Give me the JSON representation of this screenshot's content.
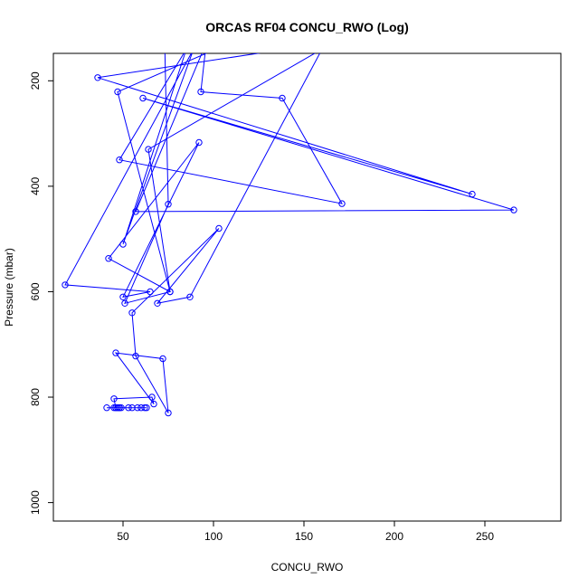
{
  "chart_data": {
    "type": "line",
    "title": "ORCAS RF04 CONCU_RWO (Log)",
    "xlabel": "CONCU_RWO",
    "ylabel": "Pressure (mbar)",
    "xlim": [
      11.5,
      292
    ],
    "ylim": [
      1035,
      148
    ],
    "x_ticks": [
      50,
      100,
      150,
      200,
      250
    ],
    "y_ticks": [
      200,
      400,
      600,
      800,
      1000
    ],
    "grid": false,
    "legend": "none",
    "series_color": "#0000ff",
    "series": [
      {
        "x": [
          140,
          36,
          243,
          61,
          266,
          57,
          96,
          93,
          138,
          171,
          48,
          85,
          50,
          89,
          18,
          65,
          50,
          92,
          42,
          76,
          51,
          75,
          73,
          114,
          47,
          76,
          64,
          160,
          87,
          69,
          103,
          55,
          57,
          75,
          72,
          46,
          67,
          66,
          45,
          46,
          41,
          48,
          49,
          55,
          53,
          47,
          48,
          45,
          60,
          63,
          46,
          48,
          62,
          47,
          58
        ],
        "y": [
          140,
          194,
          415,
          233,
          445,
          448,
          128,
          221,
          233,
          433,
          350,
          140,
          510,
          140,
          587,
          600,
          610,
          317,
          537,
          600,
          622,
          434,
          122,
          121,
          221,
          600,
          330,
          140,
          610,
          622,
          480,
          640,
          722,
          830,
          727,
          716,
          813,
          800,
          803,
          820,
          820,
          820,
          820,
          820,
          820,
          820,
          820,
          820,
          820,
          820,
          820,
          820,
          820,
          820,
          820
        ]
      }
    ]
  }
}
